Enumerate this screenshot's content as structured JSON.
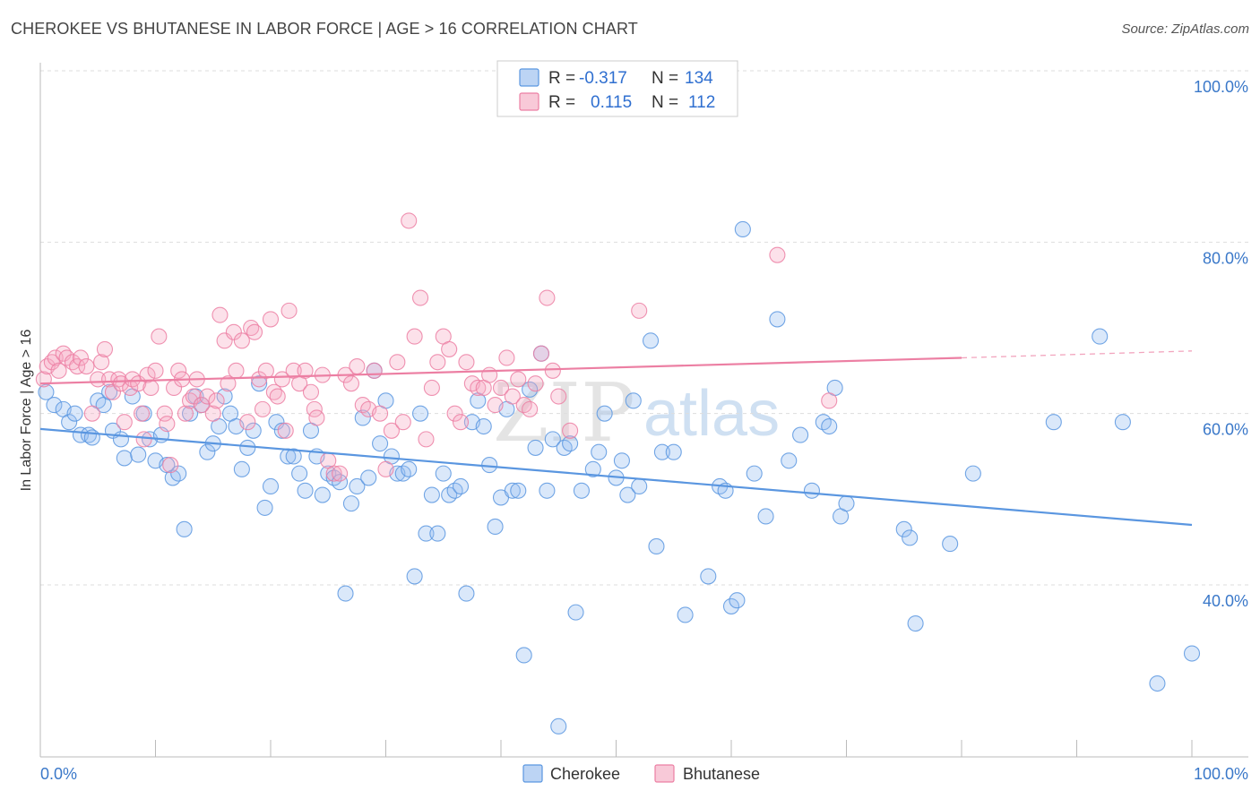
{
  "header": {
    "title": "CHEROKEE VS BHUTANESE IN LABOR FORCE | AGE > 16 CORRELATION CHART",
    "source": "Source: ZipAtlas.com"
  },
  "watermark": {
    "zip": "ZIP",
    "atlas": "atlas"
  },
  "legend": {
    "rows": [
      {
        "r_label": "R =",
        "r_value": "-0.317",
        "n_label": "N =",
        "n_value": "134",
        "color": "#5a96e0"
      },
      {
        "r_label": "R =",
        "r_value": "0.115",
        "n_label": "N =",
        "n_value": "112",
        "color": "#ec7fa3"
      }
    ]
  },
  "bottom_legend": [
    {
      "label": "Cherokee",
      "color": "#5a96e0"
    },
    {
      "label": "Bhutanese",
      "color": "#ec7fa3"
    }
  ],
  "chart_data": {
    "type": "scatter",
    "title": "CHEROKEE VS BHUTANESE IN LABOR FORCE | AGE > 16 CORRELATION CHART",
    "xlabel": "",
    "ylabel": "In Labor Force | Age > 16",
    "xlim": [
      0,
      100
    ],
    "ylim": [
      19,
      100
    ],
    "x_tick_labels": [
      "0.0%",
      "100.0%"
    ],
    "y_ticks": [
      40,
      60,
      80,
      100
    ],
    "y_tick_labels": [
      "40.0%",
      "60.0%",
      "80.0%",
      "100.0%"
    ],
    "grid": true,
    "series": [
      {
        "name": "Cherokee",
        "color": "#5a96e0",
        "trend": {
          "x0": 0,
          "y0": 58.2,
          "x1": 100,
          "y1": 47.0
        },
        "points": [
          [
            0.5,
            62.5
          ],
          [
            1.2,
            61
          ],
          [
            2,
            60.5
          ],
          [
            2.5,
            59
          ],
          [
            3,
            60
          ],
          [
            3.5,
            57.5
          ],
          [
            4.2,
            57.5
          ],
          [
            4.5,
            57.2
          ],
          [
            5,
            61.5
          ],
          [
            5.5,
            61
          ],
          [
            6,
            62.5
          ],
          [
            6.3,
            58
          ],
          [
            7,
            57
          ],
          [
            7.3,
            54.8
          ],
          [
            8,
            62
          ],
          [
            8.5,
            55.2
          ],
          [
            9,
            60
          ],
          [
            9.5,
            57
          ],
          [
            10,
            54.5
          ],
          [
            10.5,
            57.5
          ],
          [
            11,
            54
          ],
          [
            11.5,
            52.5
          ],
          [
            12,
            53
          ],
          [
            12.5,
            46.5
          ],
          [
            13,
            60
          ],
          [
            13.5,
            62
          ],
          [
            14,
            61
          ],
          [
            14.5,
            55.5
          ],
          [
            15,
            56.5
          ],
          [
            15.5,
            58.5
          ],
          [
            16,
            62
          ],
          [
            16.5,
            60
          ],
          [
            17,
            58.5
          ],
          [
            17.5,
            53.5
          ],
          [
            18,
            56
          ],
          [
            18.5,
            58
          ],
          [
            19,
            63.5
          ],
          [
            19.5,
            49
          ],
          [
            20,
            51.5
          ],
          [
            20.5,
            59
          ],
          [
            21,
            58
          ],
          [
            21.5,
            55
          ],
          [
            22,
            55
          ],
          [
            22.5,
            53
          ],
          [
            23,
            51
          ],
          [
            23.5,
            58
          ],
          [
            24,
            55
          ],
          [
            24.5,
            50.5
          ],
          [
            25,
            53
          ],
          [
            25.5,
            52.5
          ],
          [
            26,
            52
          ],
          [
            26.5,
            39
          ],
          [
            27,
            49.5
          ],
          [
            27.5,
            51.5
          ],
          [
            28,
            59.5
          ],
          [
            28.5,
            52.5
          ],
          [
            29,
            65
          ],
          [
            29.5,
            56.5
          ],
          [
            30,
            61.5
          ],
          [
            30.5,
            55
          ],
          [
            31,
            53
          ],
          [
            31.5,
            53
          ],
          [
            32,
            53.5
          ],
          [
            32.5,
            41
          ],
          [
            33,
            60
          ],
          [
            33.5,
            46
          ],
          [
            34,
            50.5
          ],
          [
            34.5,
            46
          ],
          [
            35,
            53
          ],
          [
            35.5,
            50.5
          ],
          [
            36,
            51
          ],
          [
            36.5,
            51.5
          ],
          [
            37,
            39
          ],
          [
            37.5,
            59
          ],
          [
            38,
            61.5
          ],
          [
            38.5,
            58.5
          ],
          [
            39,
            54
          ],
          [
            39.5,
            46.8
          ],
          [
            40,
            50.2
          ],
          [
            40.5,
            60.5
          ],
          [
            41,
            51
          ],
          [
            41.5,
            51
          ],
          [
            42,
            31.8
          ],
          [
            42.5,
            62.8
          ],
          [
            43,
            56
          ],
          [
            43.5,
            67
          ],
          [
            44,
            51
          ],
          [
            44.5,
            57
          ],
          [
            45,
            23.5
          ],
          [
            45.5,
            56
          ],
          [
            46,
            56.5
          ],
          [
            46.5,
            36.8
          ],
          [
            47,
            51
          ],
          [
            48,
            53.5
          ],
          [
            48.5,
            55.5
          ],
          [
            49,
            60
          ],
          [
            50,
            52.5
          ],
          [
            50.5,
            54.5
          ],
          [
            51,
            50.5
          ],
          [
            51.5,
            61.5
          ],
          [
            52,
            51.5
          ],
          [
            53,
            68.5
          ],
          [
            53.5,
            44.5
          ],
          [
            54,
            55.5
          ],
          [
            55,
            55.5
          ],
          [
            56,
            36.5
          ],
          [
            58,
            41
          ],
          [
            59,
            51.5
          ],
          [
            59.5,
            51
          ],
          [
            60,
            37.5
          ],
          [
            60.5,
            38.2
          ],
          [
            61,
            81.5
          ],
          [
            62,
            53
          ],
          [
            63,
            48
          ],
          [
            64,
            71
          ],
          [
            65,
            54.5
          ],
          [
            66,
            57.5
          ],
          [
            67,
            51
          ],
          [
            68,
            59
          ],
          [
            68.5,
            58.5
          ],
          [
            69,
            63
          ],
          [
            69.5,
            48
          ],
          [
            70,
            49.5
          ],
          [
            75,
            46.5
          ],
          [
            75.5,
            45.5
          ],
          [
            76,
            35.5
          ],
          [
            79,
            44.8
          ],
          [
            81,
            53
          ],
          [
            88,
            59
          ],
          [
            92,
            69
          ],
          [
            94,
            59
          ],
          [
            97,
            28.5
          ],
          [
            100,
            32
          ]
        ]
      },
      {
        "name": "Bhutanese",
        "color": "#ec7fa3",
        "trend": {
          "x0": 0,
          "y0": 63.5,
          "x1": 80,
          "y1": 66.5,
          "dash_to_x": 100,
          "dash_to_y": 67.3
        },
        "points": [
          [
            0.3,
            64
          ],
          [
            0.6,
            65.5
          ],
          [
            1,
            66
          ],
          [
            1.3,
            66.5
          ],
          [
            1.6,
            65
          ],
          [
            2,
            67
          ],
          [
            2.3,
            66.5
          ],
          [
            2.8,
            66
          ],
          [
            3.2,
            65.5
          ],
          [
            3.5,
            66.5
          ],
          [
            4,
            65.5
          ],
          [
            4.5,
            60
          ],
          [
            5,
            64
          ],
          [
            5.3,
            66
          ],
          [
            5.6,
            67.5
          ],
          [
            6,
            64
          ],
          [
            6.3,
            62.5
          ],
          [
            6.8,
            64
          ],
          [
            7,
            63.5
          ],
          [
            7.3,
            59
          ],
          [
            7.8,
            63
          ],
          [
            8,
            64
          ],
          [
            8.5,
            63.5
          ],
          [
            8.8,
            60
          ],
          [
            9,
            57
          ],
          [
            9.3,
            64.5
          ],
          [
            9.6,
            63
          ],
          [
            10,
            65
          ],
          [
            10.3,
            69
          ],
          [
            10.8,
            60
          ],
          [
            11,
            58.8
          ],
          [
            11.3,
            54
          ],
          [
            11.6,
            63
          ],
          [
            12,
            65
          ],
          [
            12.3,
            64
          ],
          [
            12.6,
            60
          ],
          [
            13,
            61.5
          ],
          [
            13.3,
            62
          ],
          [
            13.6,
            64
          ],
          [
            14,
            61
          ],
          [
            14.5,
            62
          ],
          [
            15,
            60
          ],
          [
            15.3,
            61.5
          ],
          [
            15.6,
            71.5
          ],
          [
            16,
            68.5
          ],
          [
            16.3,
            63.5
          ],
          [
            16.8,
            69.5
          ],
          [
            17,
            65
          ],
          [
            17.5,
            68.5
          ],
          [
            18,
            59
          ],
          [
            18.3,
            70
          ],
          [
            18.6,
            69.5
          ],
          [
            19,
            64
          ],
          [
            19.3,
            60.5
          ],
          [
            19.6,
            65
          ],
          [
            20,
            71
          ],
          [
            20.3,
            62.5
          ],
          [
            20.6,
            62
          ],
          [
            21,
            64
          ],
          [
            21.3,
            58
          ],
          [
            21.6,
            72
          ],
          [
            22,
            65
          ],
          [
            22.5,
            63.5
          ],
          [
            23,
            65
          ],
          [
            23.5,
            62.5
          ],
          [
            23.8,
            60.5
          ],
          [
            24,
            59.5
          ],
          [
            24.5,
            64.5
          ],
          [
            25,
            54.5
          ],
          [
            25.5,
            53
          ],
          [
            26,
            53
          ],
          [
            26.5,
            64.5
          ],
          [
            27,
            63.5
          ],
          [
            27.5,
            65.5
          ],
          [
            28,
            61
          ],
          [
            28.5,
            60.5
          ],
          [
            29,
            65
          ],
          [
            29.5,
            60
          ],
          [
            30,
            53.5
          ],
          [
            30.5,
            58
          ],
          [
            31,
            66
          ],
          [
            31.5,
            59
          ],
          [
            32,
            82.5
          ],
          [
            32.5,
            69
          ],
          [
            33,
            73.5
          ],
          [
            33.5,
            57
          ],
          [
            34,
            63
          ],
          [
            34.5,
            66
          ],
          [
            35,
            69
          ],
          [
            35.5,
            67.5
          ],
          [
            36,
            60
          ],
          [
            36.5,
            59
          ],
          [
            37,
            66
          ],
          [
            37.5,
            63.5
          ],
          [
            38,
            63
          ],
          [
            38.5,
            63
          ],
          [
            39,
            64.5
          ],
          [
            39.5,
            61
          ],
          [
            40,
            63
          ],
          [
            40.5,
            66.5
          ],
          [
            41,
            62
          ],
          [
            41.5,
            64
          ],
          [
            42,
            61
          ],
          [
            42.5,
            60.5
          ],
          [
            43,
            63.5
          ],
          [
            43.5,
            67
          ],
          [
            44,
            73.5
          ],
          [
            44.5,
            65
          ],
          [
            45,
            62
          ],
          [
            46,
            58
          ],
          [
            52,
            72
          ],
          [
            64,
            78.5
          ],
          [
            68.5,
            61.5
          ]
        ]
      }
    ]
  }
}
